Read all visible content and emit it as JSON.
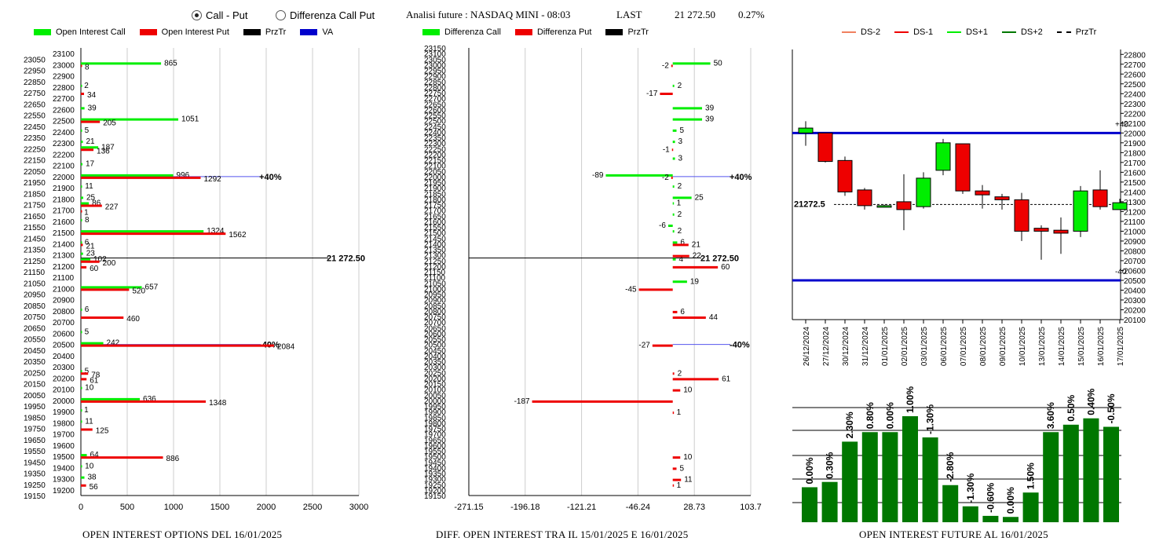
{
  "radios": [
    {
      "label": "Call - Put",
      "selected": true
    },
    {
      "label": "Differenza Call Put",
      "selected": false
    }
  ],
  "header": {
    "title": "Analisi future : NASDAQ MINI - 08:03",
    "last_label": "LAST",
    "last_value": "21 272.50",
    "change": "0.27%"
  },
  "colors": {
    "green": "#00ee00",
    "red": "#ee0000",
    "blue": "#0000cc",
    "dark_green": "#007700",
    "va_line": "#5555ee"
  },
  "chart_data": [
    {
      "type": "bar",
      "orientation": "horizontal",
      "title": "OPEN INTEREST OPTIONS DEL 16/01/2025",
      "legend": [
        {
          "name": "Open Interest Call",
          "color": "#00ee00"
        },
        {
          "name": "Open Interest Put",
          "color": "#ee0000"
        },
        {
          "name": "PrzTr",
          "color": "#000000"
        },
        {
          "name": "VA",
          "color": "#0000cc"
        }
      ],
      "xlim": [
        0,
        3000
      ],
      "xticks": [
        "0",
        "500",
        "1000",
        "1500",
        "2000",
        "2500",
        "3000"
      ],
      "ylim": [
        19150,
        23150
      ],
      "ytick_labels": [
        "23100",
        "23050",
        "23000",
        "22950",
        "22900",
        "22850",
        "22800",
        "22750",
        "22700",
        "22650",
        "22600",
        "22550",
        "22500",
        "22450",
        "22400",
        "22350",
        "22300",
        "22250",
        "22200",
        "22150",
        "22100",
        "22050",
        "22000",
        "21950",
        "21900",
        "21850",
        "21800",
        "21750",
        "21700",
        "21650",
        "21600",
        "21550",
        "21500",
        "21450",
        "21400",
        "21350",
        "21300",
        "21250",
        "21200",
        "21150",
        "21100",
        "21050",
        "21000",
        "20950",
        "20900",
        "20850",
        "20800",
        "20750",
        "20700",
        "20650",
        "20600",
        "20550",
        "20500",
        "20450",
        "20400",
        "20350",
        "20300",
        "20250",
        "20200",
        "20150",
        "20100",
        "20050",
        "20000",
        "19950",
        "19900",
        "19850",
        "19800",
        "19750",
        "19700",
        "19650",
        "19600",
        "19550",
        "19500",
        "19450",
        "19400",
        "19350",
        "19300",
        "19250",
        "19200",
        "19150"
      ],
      "series": [
        {
          "name": "Open Interest Call",
          "points": [
            [
              23000,
              865
            ],
            [
              22800,
              2
            ],
            [
              22600,
              39
            ],
            [
              22500,
              1051
            ],
            [
              22400,
              5
            ],
            [
              22300,
              21
            ],
            [
              22250,
              187
            ],
            [
              22100,
              17
            ],
            [
              22000,
              996
            ],
            [
              21900,
              11
            ],
            [
              21800,
              25
            ],
            [
              21750,
              86
            ],
            [
              21600,
              8
            ],
            [
              21500,
              1324
            ],
            [
              21400,
              6
            ],
            [
              21300,
              23
            ],
            [
              21250,
              102
            ],
            [
              21000,
              657
            ],
            [
              20800,
              6
            ],
            [
              20600,
              5
            ],
            [
              20500,
              242
            ],
            [
              20250,
              5
            ],
            [
              20100,
              10
            ],
            [
              20000,
              636
            ],
            [
              19900,
              1
            ],
            [
              19800,
              11
            ],
            [
              19500,
              64
            ],
            [
              19400,
              10
            ],
            [
              19300,
              38
            ]
          ]
        },
        {
          "name": "Open Interest Put",
          "points": [
            [
              23000,
              8
            ],
            [
              22750,
              34
            ],
            [
              22500,
              205
            ],
            [
              22250,
              136
            ],
            [
              22000,
              1292
            ],
            [
              21750,
              227
            ],
            [
              21700,
              1
            ],
            [
              21500,
              1562
            ],
            [
              21400,
              21
            ],
            [
              21250,
              200
            ],
            [
              21200,
              60
            ],
            [
              21000,
              520
            ],
            [
              20750,
              460
            ],
            [
              20500,
              2084
            ],
            [
              20250,
              78
            ],
            [
              20200,
              61
            ],
            [
              20000,
              1348
            ],
            [
              19750,
              125
            ],
            [
              19500,
              886
            ],
            [
              19250,
              56
            ]
          ]
        }
      ],
      "przTr": "21 272.50",
      "va": [
        {
          "price": 22000,
          "extent": 2450,
          "label": "+40%"
        },
        {
          "price": 20500,
          "extent": 2450,
          "label": "-40%"
        }
      ]
    },
    {
      "type": "bar",
      "orientation": "horizontal",
      "title": "DIFF. OPEN INTEREST TRA IL 15/01/2025 E 16/01/2025",
      "legend": [
        {
          "name": "Differenza Call",
          "color": "#00ee00"
        },
        {
          "name": "Differenza Put",
          "color": "#ee0000"
        },
        {
          "name": "PrzTr",
          "color": "#000000"
        }
      ],
      "xlim": [
        -271.15,
        103.7
      ],
      "xticks": [
        "-271.15",
        "-196.18",
        "-121.21",
        "-46.24",
        "28.73",
        "103.7"
      ],
      "ylim": [
        19150,
        23150
      ],
      "ytick_labels": [
        "23150",
        "23100",
        "23050",
        "23000",
        "22950",
        "22900",
        "22850",
        "22800",
        "22750",
        "22700",
        "22650",
        "22600",
        "22550",
        "22500",
        "22450",
        "22400",
        "22350",
        "22300",
        "22250",
        "22200",
        "22150",
        "22100",
        "22050",
        "22000",
        "21950",
        "21900",
        "21850",
        "21800",
        "21750",
        "21700",
        "21650",
        "21600",
        "21550",
        "21500",
        "21450",
        "21400",
        "21350",
        "21300",
        "21250",
        "21200",
        "21150",
        "21100",
        "21050",
        "21000",
        "20950",
        "20900",
        "20850",
        "20800",
        "20750",
        "20700",
        "20650",
        "20600",
        "20550",
        "20500",
        "20450",
        "20400",
        "20350",
        "20300",
        "20250",
        "20200",
        "20150",
        "20100",
        "20050",
        "20000",
        "19950",
        "19900",
        "19850",
        "19800",
        "19750",
        "19700",
        "19650",
        "19600",
        "19550",
        "19500",
        "19450",
        "19400",
        "19350",
        "19300",
        "19250",
        "19200",
        "19150"
      ],
      "series": [
        {
          "name": "Differenza Call",
          "points": [
            [
              23000,
              50
            ],
            [
              22800,
              2
            ],
            [
              22600,
              39
            ],
            [
              22500,
              39
            ],
            [
              22400,
              5
            ],
            [
              22300,
              3
            ],
            [
              22150,
              3
            ],
            [
              22000,
              -89
            ],
            [
              21900,
              2
            ],
            [
              21800,
              25
            ],
            [
              21750,
              1
            ],
            [
              21650,
              2
            ],
            [
              21550,
              -6
            ],
            [
              21500,
              2
            ],
            [
              21400,
              6
            ],
            [
              21250,
              4
            ],
            [
              21050,
              19
            ]
          ]
        },
        {
          "name": "Differenza Put",
          "points": [
            [
              23000,
              -2
            ],
            [
              22750,
              -17
            ],
            [
              22250,
              -1
            ],
            [
              22000,
              -2
            ],
            [
              21400,
              21
            ],
            [
              21300,
              22
            ],
            [
              21200,
              60
            ],
            [
              21000,
              -45
            ],
            [
              20800,
              6
            ],
            [
              20750,
              44
            ],
            [
              20500,
              -27
            ],
            [
              20250,
              2
            ],
            [
              20200,
              61
            ],
            [
              20100,
              10
            ],
            [
              20000,
              -187
            ],
            [
              19900,
              1
            ],
            [
              19500,
              10
            ],
            [
              19400,
              5
            ],
            [
              19300,
              11
            ],
            [
              19250,
              1
            ]
          ]
        }
      ],
      "przTr": "21 272.50",
      "va": [
        {
          "price": 22000,
          "label": "+40%"
        },
        {
          "price": 20500,
          "label": "-40%"
        }
      ]
    },
    {
      "type": "candlestick",
      "legend": [
        {
          "name": "DS-2",
          "color": "#f08060"
        },
        {
          "name": "DS-1",
          "color": "#ee0000"
        },
        {
          "name": "DS+1",
          "color": "#00ee00"
        },
        {
          "name": "DS+2",
          "color": "#007700"
        },
        {
          "name": "PrzTr",
          "color": "#000000"
        }
      ],
      "ylim": [
        20100,
        22850
      ],
      "ytick_labels": [
        "22800",
        "22700",
        "22600",
        "22500",
        "22400",
        "22300",
        "22200",
        "22100",
        "22000",
        "21900",
        "21800",
        "21700",
        "21600",
        "21500",
        "21400",
        "21300",
        "21200",
        "21100",
        "21000",
        "20900",
        "20800",
        "20700",
        "20600",
        "20500",
        "20400",
        "20300",
        "20200",
        "20100"
      ],
      "categories": [
        "26/12/2024",
        "27/12/2024",
        "30/12/2024",
        "31/12/2024",
        "01/01/2025",
        "02/01/2025",
        "03/01/2025",
        "06/01/2025",
        "07/01/2025",
        "08/01/2025",
        "09/01/2025",
        "10/01/2025",
        "13/01/2025",
        "14/01/2025",
        "15/01/2025",
        "16/01/2025",
        "17/01/2025"
      ],
      "ohlc": [
        [
          22000,
          22120,
          21870,
          22050
        ],
        [
          22000,
          22000,
          21700,
          21710
        ],
        [
          21720,
          21760,
          21360,
          21400
        ],
        [
          21420,
          21440,
          21220,
          21260
        ],
        [
          21260,
          21270,
          21250,
          21260
        ],
        [
          21300,
          21580,
          21010,
          21220
        ],
        [
          21250,
          21600,
          21230,
          21540
        ],
        [
          21620,
          21940,
          21570,
          21900
        ],
        [
          21890,
          21890,
          21380,
          21410
        ],
        [
          21410,
          21470,
          21230,
          21370
        ],
        [
          21350,
          21380,
          21220,
          21320
        ],
        [
          21320,
          21390,
          20900,
          21000
        ],
        [
          21030,
          21060,
          20710,
          21000
        ],
        [
          21010,
          21140,
          20770,
          20980
        ],
        [
          21000,
          21460,
          20940,
          21410
        ],
        [
          21420,
          21620,
          21220,
          21250
        ],
        [
          21220,
          21330,
          21230,
          21290
        ]
      ],
      "przTr": 21272.5,
      "przTr_label": "21272.5",
      "blue_levels": [
        22000,
        20500
      ],
      "right_labels": [
        "+40",
        "-40"
      ]
    },
    {
      "type": "bar",
      "title": "OPEN INTEREST FUTURE AL 16/01/2025",
      "categories": [
        "26/12/2024",
        "27/12/2024",
        "30/12/2024",
        "31/12/2024",
        "01/01/2025",
        "02/01/2025",
        "03/01/2025",
        "06/01/2025",
        "07/01/2025",
        "08/01/2025",
        "09/01/2025",
        "10/01/2025",
        "13/01/2025",
        "14/01/2025",
        "15/01/2025",
        "16/01/2025"
      ],
      "values": [
        0.33,
        0.38,
        0.76,
        0.85,
        0.85,
        1.0,
        0.8,
        0.35,
        0.15,
        0.06,
        0.05,
        0.28,
        0.85,
        0.92,
        0.98,
        0.9
      ],
      "labels": [
        "0.00%",
        "0.30%",
        "2.30%",
        "0.80%",
        "0.00%",
        "1.00%",
        "-1.30%",
        "-2.80%",
        "-1.30%",
        "-0.60%",
        "0.00%",
        "1.50%",
        "3.60%",
        "0.50%",
        "0.40%",
        "-0.50%"
      ]
    }
  ]
}
